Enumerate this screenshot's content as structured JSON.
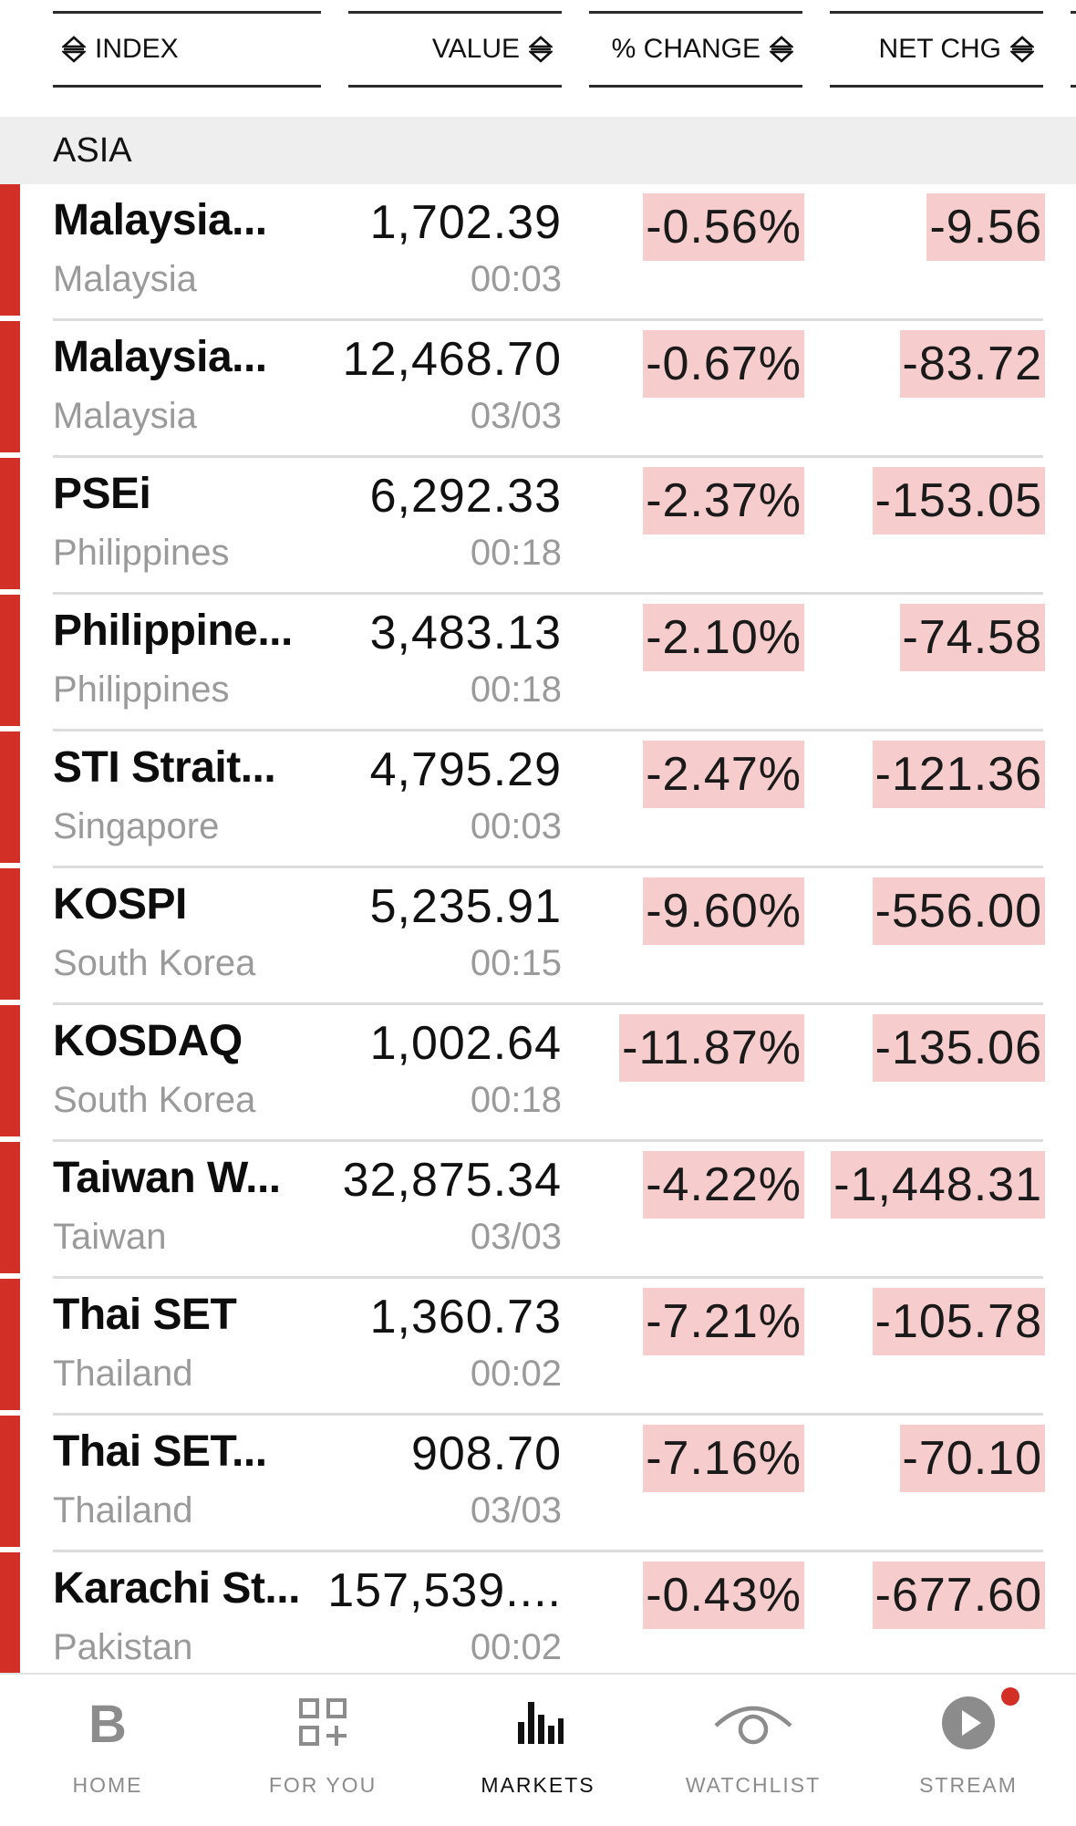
{
  "header": {
    "col_index": "INDEX",
    "col_value": "VALUE",
    "col_pct": "% CHANGE",
    "col_net": "NET CHG"
  },
  "section": {
    "title": "ASIA"
  },
  "rows": [
    {
      "name": "Malaysia...",
      "country": "Malaysia",
      "value": "1,702.39",
      "time": "00:03",
      "pct": "-0.56%",
      "net": "-9.56"
    },
    {
      "name": "Malaysia...",
      "country": "Malaysia",
      "value": "12,468.70",
      "time": "03/03",
      "pct": "-0.67%",
      "net": "-83.72"
    },
    {
      "name": "PSEi",
      "country": "Philippines",
      "value": "6,292.33",
      "time": "00:18",
      "pct": "-2.37%",
      "net": "-153.05"
    },
    {
      "name": "Philippine...",
      "country": "Philippines",
      "value": "3,483.13",
      "time": "00:18",
      "pct": "-2.10%",
      "net": "-74.58"
    },
    {
      "name": "STI Strait...",
      "country": "Singapore",
      "value": "4,795.29",
      "time": "00:03",
      "pct": "-2.47%",
      "net": "-121.36"
    },
    {
      "name": "KOSPI",
      "country": "South Korea",
      "value": "5,235.91",
      "time": "00:15",
      "pct": "-9.60%",
      "net": "-556.00"
    },
    {
      "name": "KOSDAQ",
      "country": "South Korea",
      "value": "1,002.64",
      "time": "00:18",
      "pct": "-11.87%",
      "net": "-135.06"
    },
    {
      "name": "Taiwan W...",
      "country": "Taiwan",
      "value": "32,875.34",
      "time": "03/03",
      "pct": "-4.22%",
      "net": "-1,448.31"
    },
    {
      "name": "Thai SET",
      "country": "Thailand",
      "value": "1,360.73",
      "time": "00:02",
      "pct": "-7.21%",
      "net": "-105.78"
    },
    {
      "name": "Thai SET...",
      "country": "Thailand",
      "value": "908.70",
      "time": "03/03",
      "pct": "-7.16%",
      "net": "-70.10"
    },
    {
      "name": "Karachi St...",
      "country": "Pakistan",
      "value": "157,539....",
      "time": "00:02",
      "pct": "-0.43%",
      "net": "-677.60"
    }
  ],
  "nav": {
    "home": {
      "label": "HOME",
      "icon": "bloomberg-b-icon"
    },
    "for_you": {
      "label": "FOR YOU",
      "icon": "grid-plus-icon"
    },
    "markets": {
      "label": "MARKETS",
      "icon": "bar-chart-icon"
    },
    "watchlist": {
      "label": "WATCHLIST",
      "icon": "eye-icon"
    },
    "stream": {
      "label": "STREAM",
      "icon": "play-icon"
    }
  },
  "colors": {
    "down_accent": "#d22f27",
    "down_highlight": "#f6cccc",
    "muted_text": "#9a9a9a"
  }
}
